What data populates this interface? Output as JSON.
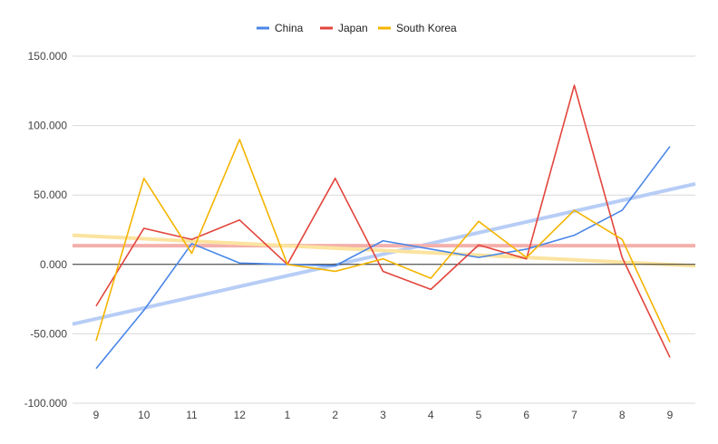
{
  "chart_data": {
    "type": "line",
    "title": "",
    "xlabel": "",
    "ylabel": "",
    "categories": [
      "9",
      "10",
      "11",
      "12",
      "1",
      "2",
      "3",
      "4",
      "5",
      "6",
      "7",
      "8",
      "9"
    ],
    "ylim": [
      -100,
      150
    ],
    "yticks": [
      -100,
      -50,
      0,
      50,
      100,
      150
    ],
    "ytick_labels": [
      "-100.000",
      "-50.000",
      "0.000",
      "50.000",
      "100.000",
      "150.000"
    ],
    "grid": true,
    "legend_position": "top",
    "series": [
      {
        "name": "China",
        "color": "#4a86e8",
        "values": [
          -75,
          -33,
          15,
          1,
          0,
          -1,
          17,
          11,
          5,
          11,
          21,
          39,
          85
        ]
      },
      {
        "name": "Japan",
        "color": "#e2453c",
        "values": [
          -30,
          26,
          18,
          32,
          0,
          62,
          -5,
          -18,
          14,
          4,
          129,
          5,
          -67
        ]
      },
      {
        "name": "South Korea",
        "color": "#f4b400",
        "values": [
          -55,
          62,
          8,
          90,
          0,
          -5,
          4,
          -10,
          31,
          5,
          39,
          18,
          -56
        ]
      }
    ],
    "trendlines": [
      {
        "series": "China",
        "color": "#b7cdf6",
        "start": -43,
        "end": 58
      },
      {
        "series": "Japan",
        "color": "#f4b0ac",
        "start": 13.5,
        "end": 13.5
      },
      {
        "series": "South Korea",
        "color": "#fbe3a0",
        "start": 21,
        "end": -1
      }
    ]
  }
}
